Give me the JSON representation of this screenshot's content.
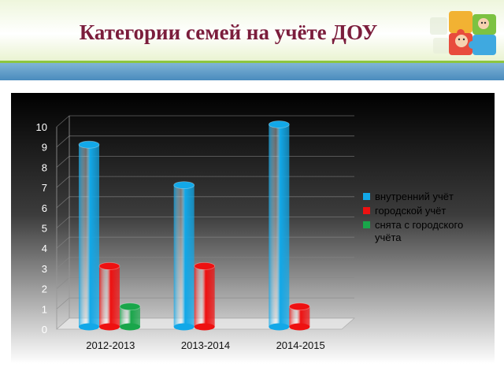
{
  "slide": {
    "title": "Категории  семей  на учёте  ДОУ"
  },
  "colors": {
    "title": "#7b1d3c",
    "accent_green": "#8dc63f",
    "band_blue": "#4a8bbd"
  },
  "logo": {
    "icon": "puzzle-children-logo-icon"
  },
  "chart_data": {
    "type": "bar",
    "style": "3d-cylinder",
    "categories": [
      "2012-2013",
      "2013-2014",
      "2014-2015"
    ],
    "series": [
      {
        "name": "внутренний учёт",
        "values": [
          9,
          7,
          10
        ],
        "color": "#12a8e8"
      },
      {
        "name": "городской учёт",
        "values": [
          3,
          3,
          1
        ],
        "color": "#ee1111"
      },
      {
        "name": "снята с городского учёта",
        "values": [
          1,
          null,
          null
        ],
        "color": "#19a64a"
      }
    ],
    "legend_lines": [
      [
        "внутренний учёт"
      ],
      [
        "городской учёт"
      ],
      [
        "снята с городского",
        "учёта"
      ]
    ],
    "yticks": [
      "0",
      "1",
      "2",
      "3",
      "4",
      "5",
      "6",
      "7",
      "8",
      "9",
      "10"
    ],
    "ylim": [
      0,
      10
    ],
    "grid": true,
    "legend": "right"
  }
}
